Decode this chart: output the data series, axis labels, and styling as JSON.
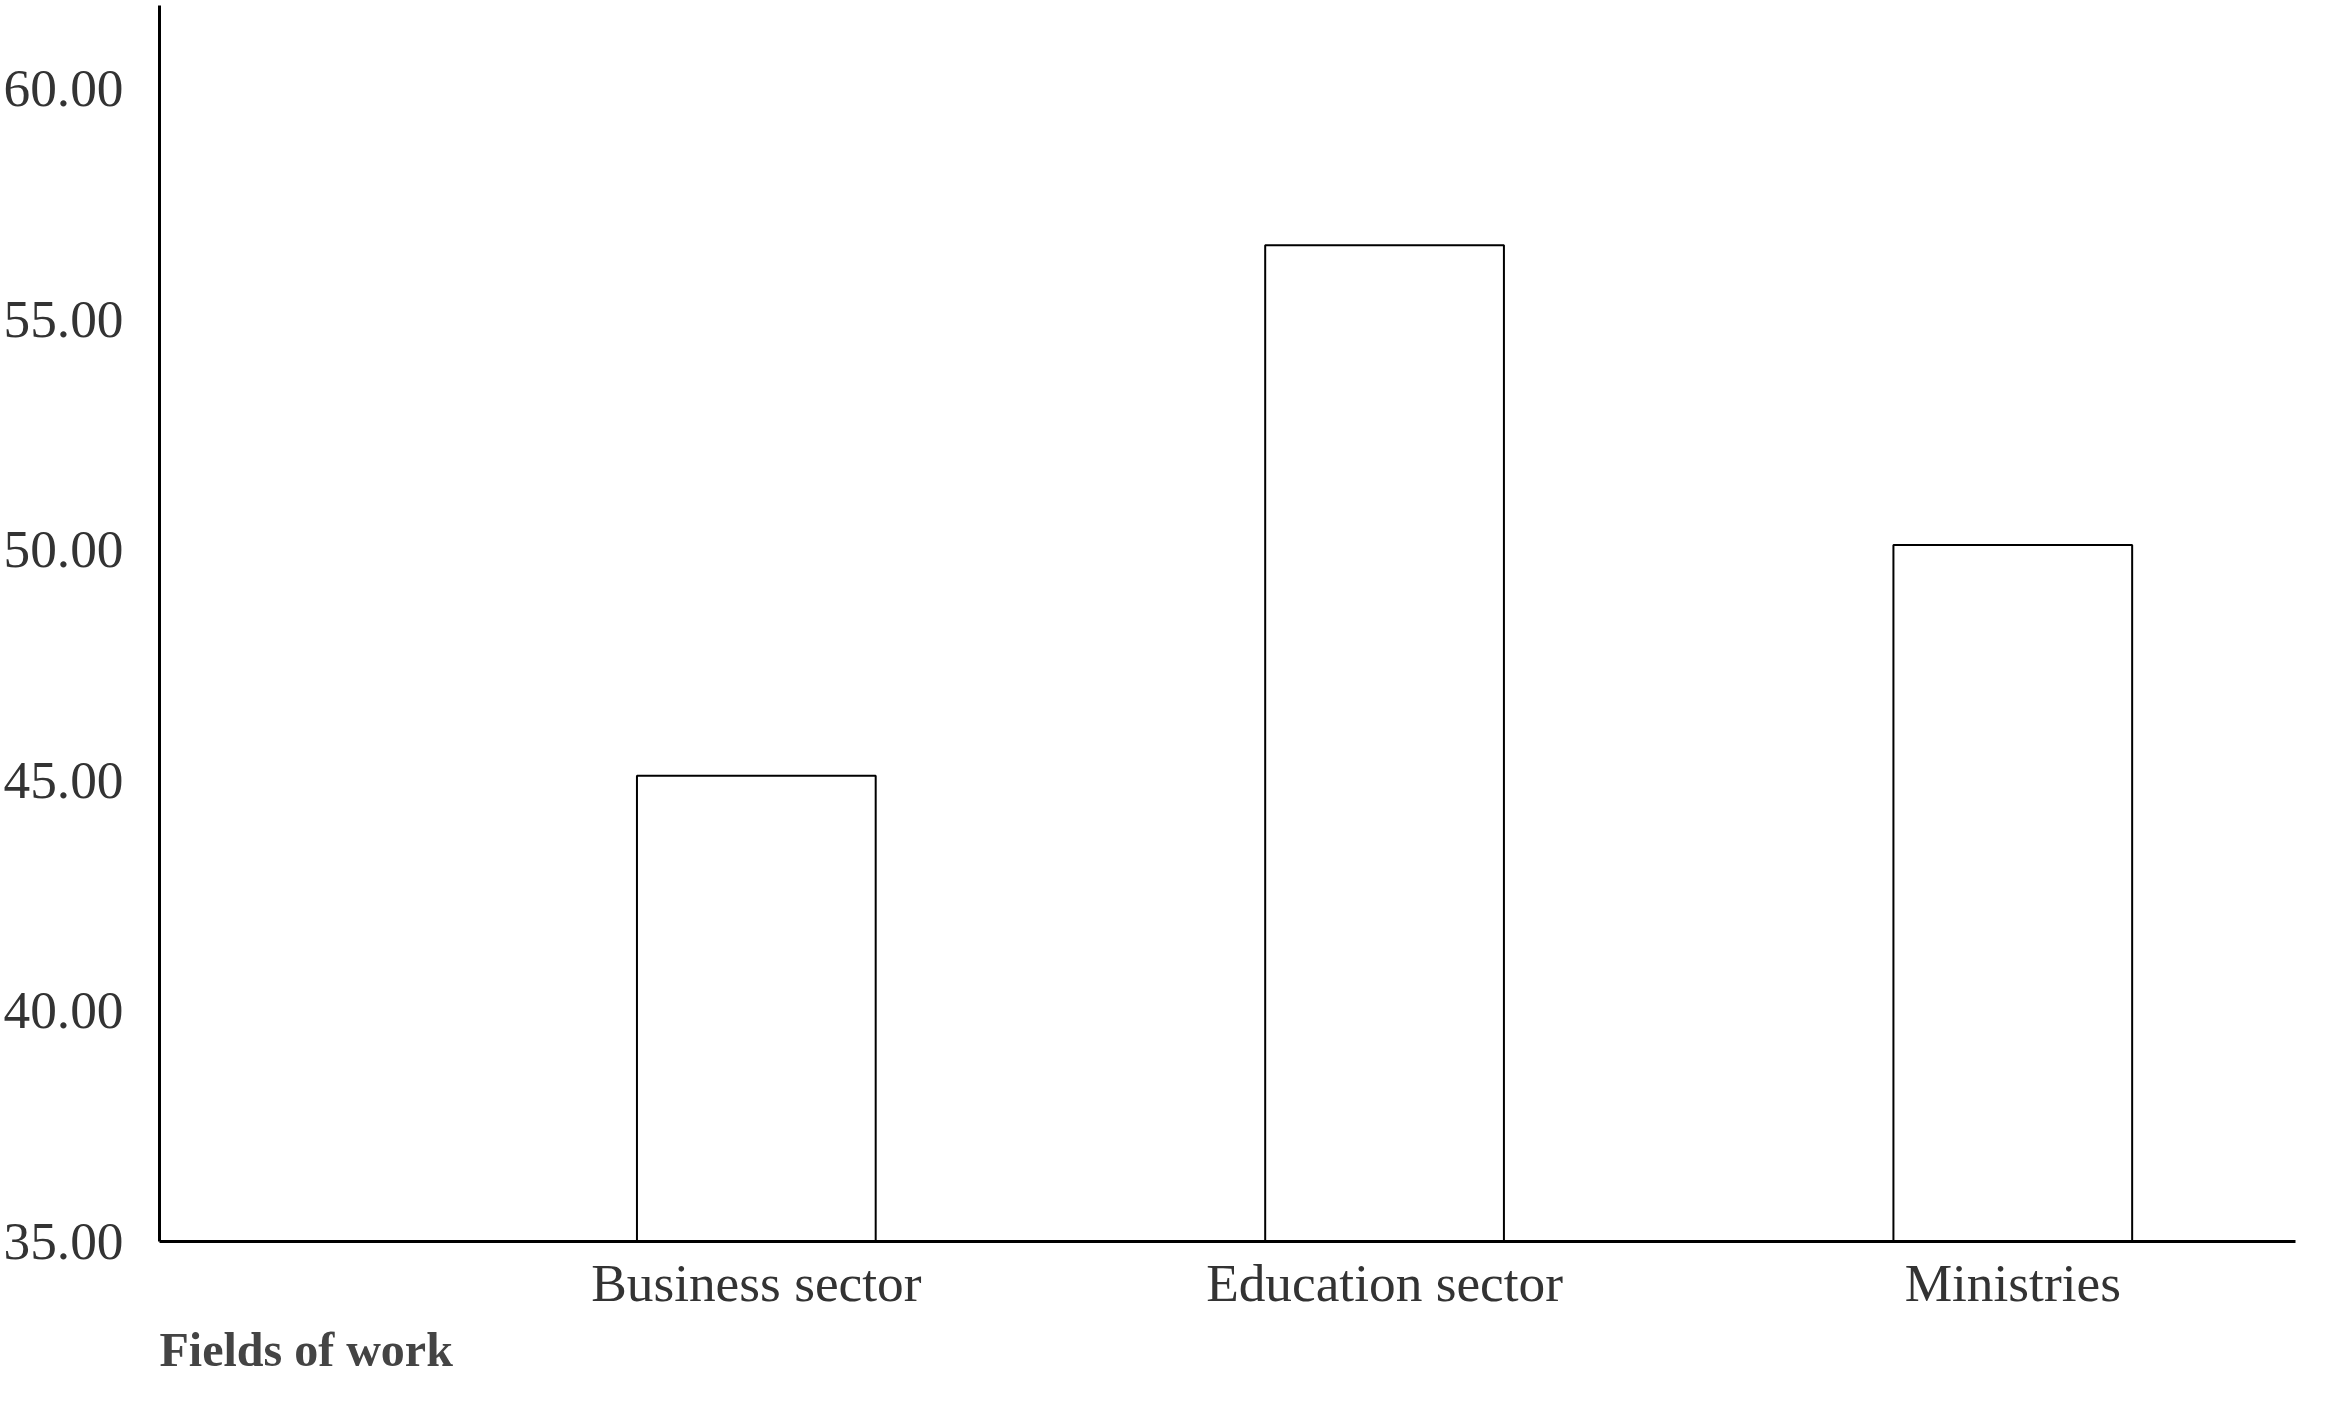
{
  "chart_data": {
    "type": "bar",
    "xlabel": "Fields of work",
    "categories": [
      "Business sector",
      "Education sector",
      "Ministries"
    ],
    "values": [
      45.1,
      56.6,
      50.1
    ],
    "color": "#ffffff",
    "ylim": [
      35,
      61.8
    ],
    "yticks": [
      {
        "value": 35,
        "label": "35.00"
      },
      {
        "value": 40,
        "label": "40.00"
      },
      {
        "value": 45,
        "label": "45.00"
      },
      {
        "value": 50,
        "label": "50.00"
      },
      {
        "value": 55,
        "label": "55.00"
      },
      {
        "value": 60,
        "label": "60.00"
      }
    ],
    "grid": false
  }
}
